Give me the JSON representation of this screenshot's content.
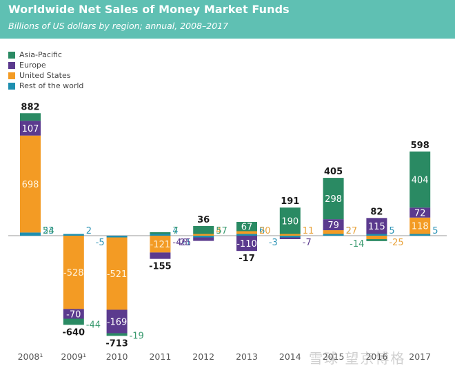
{
  "header": {
    "title": "Worldwide Net Sales of Money Market Funds",
    "subtitle": "Billions of US dollars by region; annual, 2008–2017"
  },
  "colors": {
    "asia_pacific": "#2a8a63",
    "europe": "#5b3a8e",
    "united_states": "#f39b24",
    "rest_of_world": "#1e8fb0",
    "header_bg": "#5fc0b3",
    "axis": "#999999",
    "total_label": "#1a1a1a"
  },
  "legend": [
    {
      "key": "asia_pacific",
      "label": "Asia-Pacific"
    },
    {
      "key": "europe",
      "label": "Europe"
    },
    {
      "key": "united_states",
      "label": "United States"
    },
    {
      "key": "rest_of_world",
      "label": "Rest of the world"
    }
  ],
  "watermark": "雪球 望京博格",
  "chart_data": {
    "type": "bar",
    "stacked": true,
    "title": "Worldwide Net Sales of Money Market Funds",
    "subtitle": "Billions of US dollars by region; annual, 2008–2017",
    "xlabel": "",
    "ylabel": "Billions of US dollars",
    "grid": false,
    "legend_position": "top-left",
    "categories": [
      "2008¹",
      "2009¹",
      "2010",
      "2011",
      "2012",
      "2013",
      "2014",
      "2015",
      "2016",
      "2017"
    ],
    "series": [
      {
        "name": "Asia-Pacific",
        "key": "asia_pacific",
        "values": [
          54,
          -44,
          -19,
          7,
          57,
          67,
          190,
          298,
          -14,
          404
        ]
      },
      {
        "name": "Europe",
        "key": "europe",
        "values": [
          107,
          -70,
          -169,
          -46,
          -25,
          -110,
          -7,
          79,
          115,
          72
        ]
      },
      {
        "name": "United States",
        "key": "united_states",
        "values": [
          698,
          -528,
          -521,
          -121,
          4,
          20,
          11,
          27,
          -25,
          118
        ]
      },
      {
        "name": "Rest of the world",
        "key": "rest_of_world",
        "values": [
          23,
          2,
          -5,
          4,
          -1,
          6,
          -3,
          2,
          5,
          5
        ]
      }
    ],
    "totals": [
      882,
      -640,
      -713,
      -155,
      36,
      -17,
      191,
      405,
      82,
      598
    ],
    "ylim": [
      -720,
      890
    ]
  }
}
